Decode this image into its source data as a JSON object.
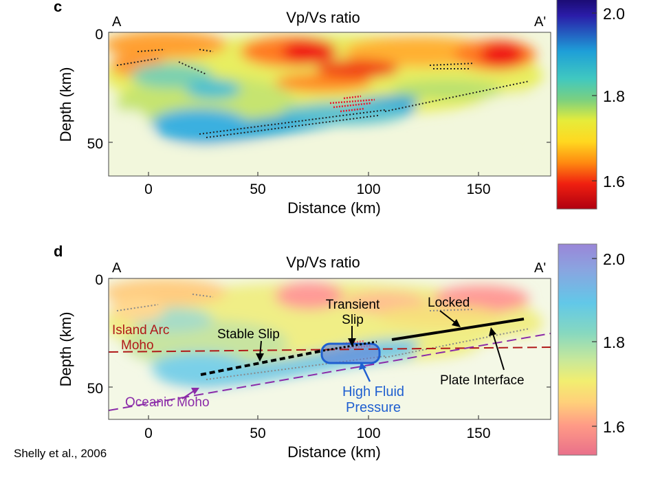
{
  "citation": "Shelly et al., 2006",
  "panels": [
    {
      "id": "c",
      "letter": "c",
      "title": "Vp/Vs ratio",
      "left_label": "A",
      "right_label": "A'",
      "xlabel": "Distance (km)",
      "ylabel": "Depth (km)",
      "x_ticks": [
        "0",
        "50",
        "100",
        "150"
      ],
      "y_ticks": [
        "0",
        "50"
      ],
      "colorbar_ticks": [
        "2.0",
        "1.8",
        "1.6"
      ]
    },
    {
      "id": "d",
      "letter": "d",
      "title": "Vp/Vs ratio",
      "left_label": "A",
      "right_label": "A'",
      "xlabel": "Distance (km)",
      "ylabel": "Depth (km)",
      "x_ticks": [
        "0",
        "50",
        "100",
        "150"
      ],
      "y_ticks": [
        "0",
        "50"
      ],
      "colorbar_ticks": [
        "2.0",
        "1.8",
        "1.6"
      ],
      "annotations": {
        "island_arc_moho": "Island Arc\nMoho",
        "oceanic_moho": "Oceanic Moho",
        "stable_slip": "Stable Slip",
        "transient_slip": "Transient\nSlip",
        "locked": "Locked",
        "plate_interface": "Plate Interface",
        "high_fluid_pressure": "High Fluid\nPressure"
      }
    }
  ],
  "colors": {
    "dark_red": "#b01818",
    "purple": "#8a2aa8",
    "blue_annot": "#1f5fd0"
  }
}
